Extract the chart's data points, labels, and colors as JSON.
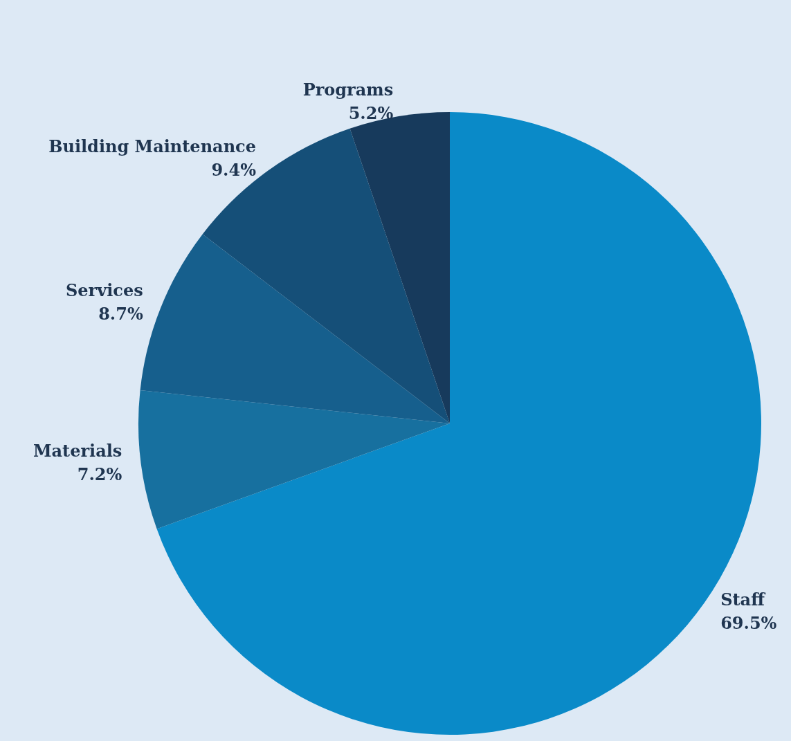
{
  "chart_data": {
    "type": "pie",
    "categories": [
      "Staff",
      "Materials",
      "Services",
      "Building Maintenance",
      "Programs"
    ],
    "values": [
      69.5,
      7.2,
      8.7,
      9.4,
      5.2
    ],
    "colors": [
      "#0a8ac8",
      "#17709f",
      "#165f8d",
      "#154f78",
      "#173a5c"
    ],
    "value_labels": [
      "69.5%",
      "7.2%",
      "8.7%",
      "9.4%",
      "5.2%"
    ],
    "legend": false
  }
}
